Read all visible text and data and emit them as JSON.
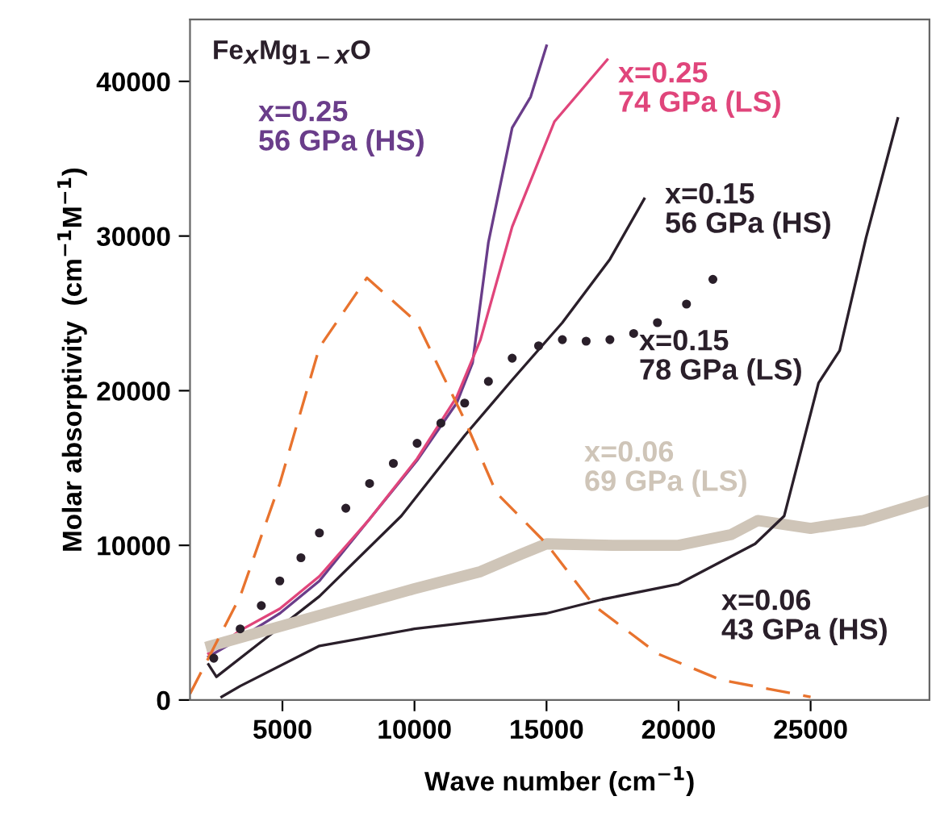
{
  "chart_data": {
    "type": "line",
    "title": "Fe$_{X}$Mg$_{1−X}$O",
    "xlabel": "Wave number (cm$^{−1}$)",
    "ylabel": "Molar absorptivity  (cm$^{−1}$M$^{−1}$)",
    "xlim": [
      1500,
      29500
    ],
    "ylim": [
      0,
      44000
    ],
    "xticks": [
      5000,
      10000,
      15000,
      20000,
      25000
    ],
    "yticks": [
      0,
      10000,
      20000,
      30000,
      40000
    ],
    "grid": false,
    "legend": false,
    "series": [
      {
        "name": "x=0.25\n56 GPa (HS)",
        "color": "#6a3d8a",
        "x": [
          2200,
          3400,
          4900,
          6400,
          8300,
          10100,
          11600,
          12200,
          12800,
          13700,
          14400,
          15000
        ],
        "values": [
          2800,
          4000,
          5600,
          7700,
          11700,
          15500,
          19200,
          21800,
          29600,
          37000,
          39000,
          42300
        ]
      },
      {
        "name": "x=0.25\n74 GPa (LS)",
        "color": "#e0457b",
        "x": [
          2200,
          3400,
          4900,
          6400,
          8300,
          10100,
          11600,
          12500,
          13700,
          15300,
          17300
        ],
        "values": [
          3000,
          4500,
          5900,
          8000,
          11700,
          15600,
          19600,
          23300,
          30600,
          37400,
          41400
        ]
      },
      {
        "name": "x=0.15\n56 GPa (HS)",
        "color": "#2a1f2a",
        "x": [
          2200,
          2500,
          4000,
          6400,
          9500,
          11900,
          13700,
          15600,
          17400,
          18700
        ],
        "values": [
          2300,
          1500,
          3500,
          6700,
          11900,
          17100,
          20700,
          24400,
          28500,
          32400
        ]
      },
      {
        "name": "x=0.15\n78 GPa (LS)",
        "color": "#2a1f2a",
        "type": "scatter",
        "marker": "circle",
        "x": [
          2400,
          3400,
          4200,
          4900,
          5700,
          6400,
          7400,
          8300,
          9200,
          10100,
          11000,
          11900,
          12800,
          13700,
          14700,
          15600,
          16500,
          17400,
          18300,
          19200,
          20300,
          21300
        ],
        "values": [
          2700,
          4600,
          6100,
          7700,
          9200,
          10800,
          12400,
          14000,
          15300,
          16600,
          17900,
          19200,
          20600,
          22100,
          22900,
          23300,
          23200,
          23300,
          23700,
          24400,
          25600,
          27200
        ]
      },
      {
        "name": "x=0.06\n69 GPa (LS)",
        "color": "#cfc5b8",
        "x": [
          2300,
          5000,
          7500,
          10000,
          12500,
          14000,
          15000,
          17500,
          20000,
          22000,
          23000,
          25000,
          27000,
          29500
        ],
        "values": [
          3500,
          4800,
          6000,
          7200,
          8300,
          9400,
          10100,
          10000,
          10000,
          10700,
          11600,
          11100,
          11600,
          12900
        ]
      },
      {
        "name": "x=0.06\n43 GPa (HS)",
        "color": "#2a1f2a",
        "x": [
          2700,
          3400,
          6400,
          10000,
          12500,
          15000,
          17100,
          20000,
          22900,
          24000,
          25300,
          26100,
          27100,
          28300
        ],
        "values": [
          200,
          900,
          3500,
          4600,
          5100,
          5600,
          6500,
          7500,
          10100,
          11900,
          20500,
          22600,
          29900,
          37600
        ]
      },
      {
        "color": "#e8732e",
        "line_style": "dashed",
        "x": [
          1500,
          3400,
          4900,
          6400,
          8200,
          10100,
          11900,
          13100,
          15000,
          16800,
          19200,
          21600,
          25000
        ],
        "values": [
          400,
          6700,
          14000,
          22800,
          27300,
          24400,
          18100,
          13400,
          10100,
          6100,
          3000,
          1300,
          200
        ]
      }
    ]
  }
}
